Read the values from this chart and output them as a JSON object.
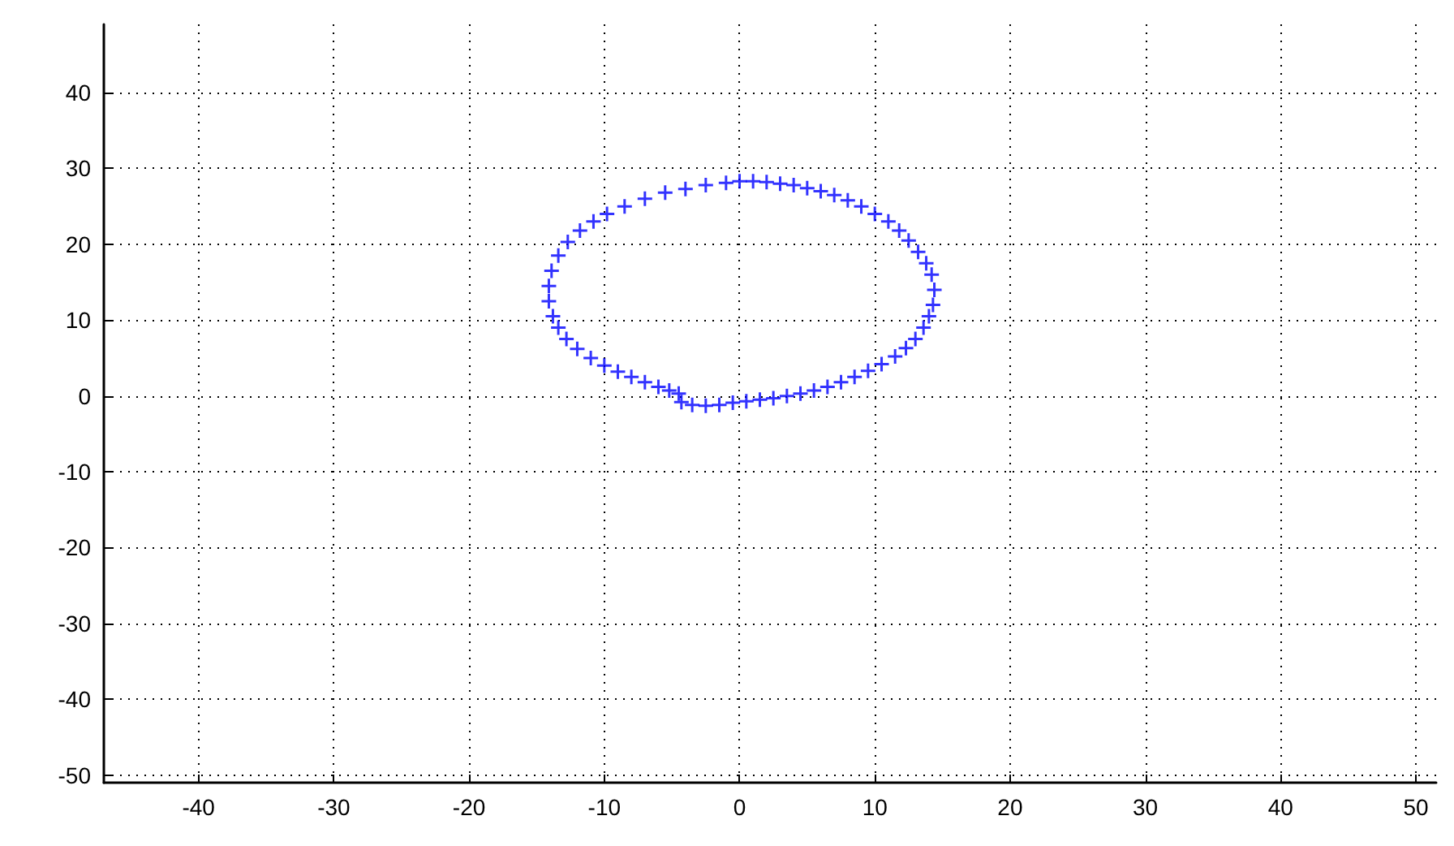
{
  "chart_data": {
    "type": "scatter",
    "marker": "cross",
    "grid": true,
    "xlim": [
      -47,
      51.5
    ],
    "ylim": [
      -51,
      49
    ],
    "xticks": [
      -40,
      -30,
      -20,
      -10,
      0,
      10,
      20,
      30,
      40,
      50
    ],
    "yticks": [
      -50,
      -40,
      -30,
      -20,
      -10,
      0,
      10,
      20,
      30,
      40
    ],
    "series": [
      {
        "color": "#0000ff",
        "x": [
          0,
          1,
          2,
          3,
          4,
          5,
          6,
          7,
          8,
          9,
          10,
          11,
          11.8,
          12.5,
          13.2,
          13.8,
          14.2,
          14.4,
          14.3,
          14,
          13.6,
          13,
          12.3,
          11.5,
          10.5,
          9.5,
          8.5,
          7.5,
          6.5,
          5.5,
          4.5,
          3.5,
          2.5,
          1.5,
          0.5,
          -0.5,
          -1.5,
          -2.5,
          -3.5,
          -4.3,
          -4.5,
          -5.2,
          -6,
          -7,
          -8,
          -9,
          -10,
          -11,
          -12,
          -12.8,
          -13.4,
          -13.8,
          -14.1,
          -14.1,
          -13.9,
          -13.4,
          -12.7,
          -11.8,
          -10.8,
          -9.8,
          -8.5,
          -7,
          -5.5,
          -4,
          -2.5,
          -1
        ],
        "values": [
          28.3,
          28.3,
          28.2,
          28,
          27.8,
          27.4,
          27,
          26.5,
          25.8,
          25,
          24,
          23,
          21.8,
          20.5,
          19,
          17.5,
          16,
          14,
          12,
          10.5,
          9,
          7.5,
          6.3,
          5.2,
          4.2,
          3.3,
          2.5,
          1.8,
          1.2,
          0.7,
          0.3,
          0,
          -0.3,
          -0.5,
          -0.7,
          -0.9,
          -1.2,
          -1.3,
          -1.2,
          -0.8,
          0.3,
          0.7,
          1.2,
          1.8,
          2.5,
          3.2,
          4,
          5,
          6.2,
          7.5,
          9,
          10.5,
          12.5,
          14.5,
          16.5,
          18.5,
          20.3,
          21.8,
          23,
          24,
          25,
          26,
          26.8,
          27.3,
          27.8,
          28.1
        ]
      }
    ]
  }
}
